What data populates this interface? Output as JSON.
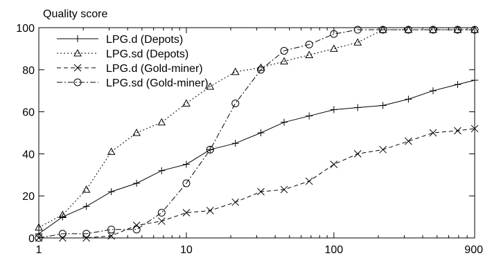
{
  "chart_data": {
    "type": "line",
    "title": "",
    "ylabel": "Quality score",
    "xlabel": "",
    "x_scale": "log",
    "xlim": [
      1,
      900
    ],
    "ylim": [
      0,
      100
    ],
    "x_ticks": [
      1,
      10,
      100,
      900
    ],
    "y_ticks": [
      0,
      20,
      40,
      60,
      80,
      100
    ],
    "grid": false,
    "legend_position": "top-left",
    "series": [
      {
        "name": "LPG.d (Depots)",
        "style": "solid",
        "marker": "plus",
        "x": [
          1,
          1.45,
          2.1,
          3.1,
          4.6,
          6.8,
          10,
          14.5,
          21.5,
          32,
          46,
          68,
          100,
          145,
          215,
          320,
          470,
          690,
          900
        ],
        "y": [
          2,
          10,
          15,
          22,
          26,
          32,
          35,
          42,
          45,
          50,
          55,
          58,
          61,
          62,
          63,
          66,
          70,
          73,
          75
        ]
      },
      {
        "name": "LPG.sd (Depots)",
        "style": "dotted",
        "marker": "triangle",
        "x": [
          1,
          1.45,
          2.1,
          3.1,
          4.6,
          6.8,
          10,
          14.5,
          21.5,
          32,
          46,
          68,
          100,
          145,
          215,
          320,
          470,
          690,
          900
        ],
        "y": [
          5,
          11,
          23,
          41,
          50,
          55,
          64,
          72,
          79,
          81,
          84,
          87,
          90,
          93,
          99,
          99,
          99,
          99,
          99
        ]
      },
      {
        "name": "LPG.d (Gold-miner)",
        "style": "dashed",
        "marker": "cross",
        "x": [
          1,
          1.45,
          2.1,
          3.1,
          4.6,
          6.8,
          10,
          14.5,
          21.5,
          32,
          46,
          68,
          100,
          145,
          215,
          320,
          470,
          690,
          900
        ],
        "y": [
          0,
          0,
          0,
          1,
          6,
          8,
          12,
          13,
          17,
          22,
          23,
          27,
          35,
          40,
          42,
          46,
          50,
          51,
          52
        ]
      },
      {
        "name": "LPG.sd (Gold-miner)",
        "style": "dashdot",
        "marker": "circle",
        "x": [
          1,
          1.45,
          2.1,
          3.1,
          4.6,
          6.8,
          10,
          14.5,
          21.5,
          32,
          46,
          68,
          100,
          145,
          215,
          320,
          470,
          690,
          900
        ],
        "y": [
          0,
          2,
          2,
          4,
          4,
          12,
          26,
          42,
          64,
          80,
          89,
          92,
          97,
          99,
          99,
          99,
          99,
          99,
          99
        ]
      }
    ]
  }
}
